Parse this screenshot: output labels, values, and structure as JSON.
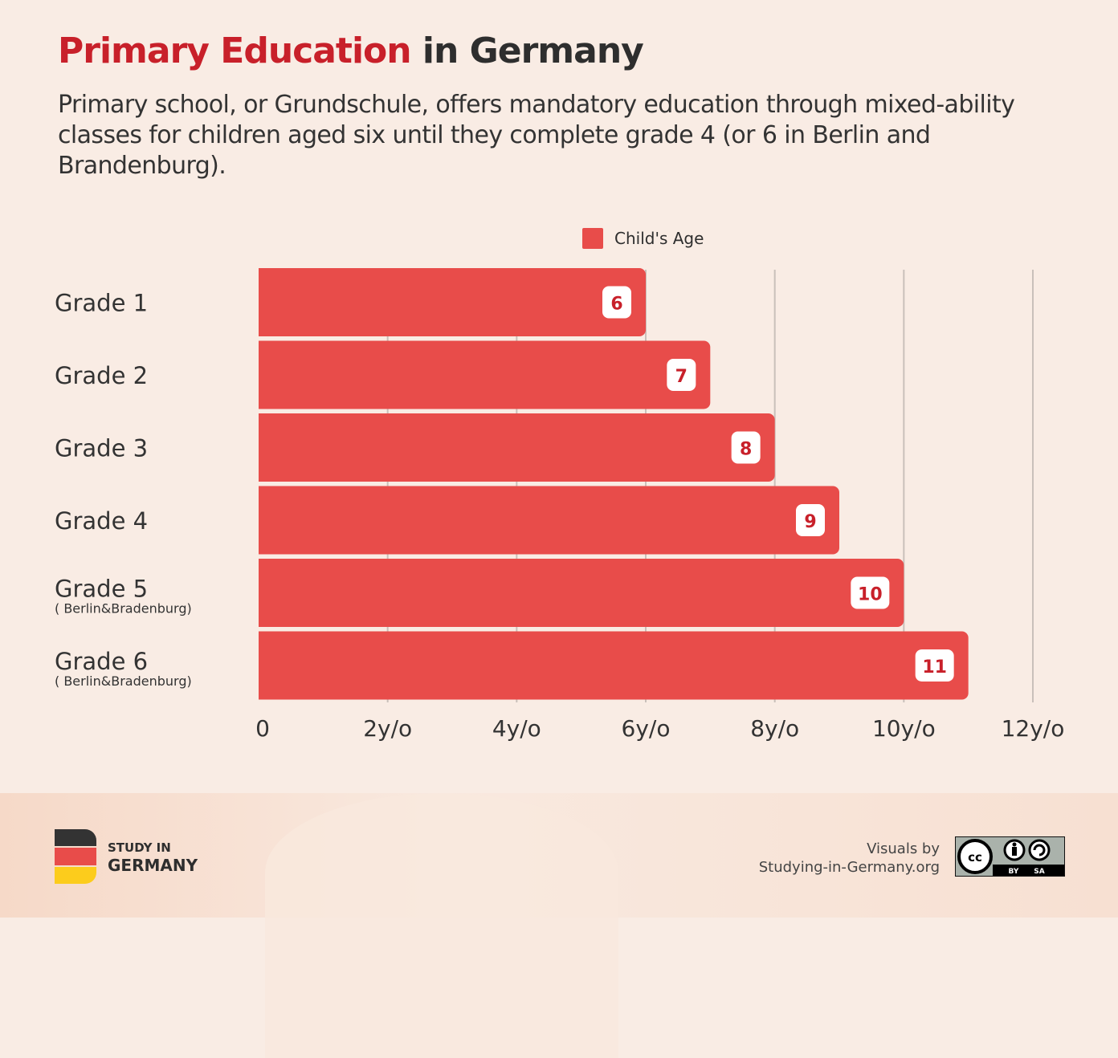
{
  "header": {
    "title_highlight": "Primary Education",
    "title_rest": " in Germany",
    "subtitle": "Primary school, or Grundschule, offers mandatory education through mixed-ability classes for children aged six until they complete grade 4 (or 6 in Berlin and Brandenburg)."
  },
  "colors": {
    "bar": "#e84c4a",
    "title_accent": "#c8202a",
    "label_text": "#c8202a",
    "background": "#f9ece4"
  },
  "chart_data": {
    "type": "bar",
    "orientation": "horizontal",
    "categories": [
      "Grade 1",
      "Grade 2",
      "Grade 3",
      "Grade 4",
      "Grade 5",
      "Grade 6"
    ],
    "category_notes": [
      "",
      "",
      "",
      "",
      "( Berlin&Bradenburg)",
      "( Berlin&Bradenburg)"
    ],
    "series": [
      {
        "name": "Child's Age",
        "values": [
          6,
          7,
          8,
          9,
          10,
          11
        ]
      }
    ],
    "data_labels": [
      "6",
      "7",
      "8",
      "9",
      "10",
      "11"
    ],
    "xlim": [
      0,
      12
    ],
    "xticks": [
      0,
      2,
      4,
      6,
      8,
      10,
      12
    ],
    "xtick_labels": [
      "0",
      "2y/o",
      "4y/o",
      "6y/o",
      "8y/o",
      "10y/o",
      "12y/o"
    ],
    "grid": "vertical",
    "legend": "top"
  },
  "footer": {
    "logo_line1": "STUDY IN",
    "logo_line2": "GERMANY",
    "credit_line1": "Visuals by",
    "credit_line2": "Studying-in-Germany.org",
    "license_badge": [
      "cc",
      "BY",
      "SA"
    ]
  }
}
